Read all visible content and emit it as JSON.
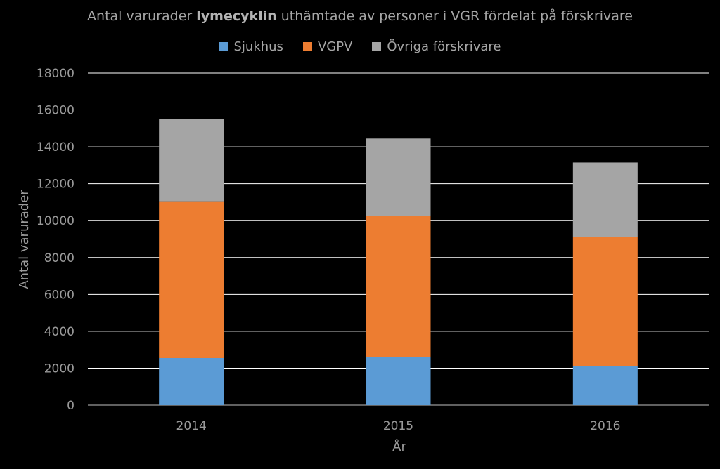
{
  "title": {
    "before": "Antal varurader ",
    "bold": "lymecyklin",
    "after": " uthämtade av personer i VGR fördelat på förskrivare"
  },
  "chart_data": {
    "type": "bar",
    "stacked": true,
    "categories": [
      "2014",
      "2015",
      "2016"
    ],
    "series": [
      {
        "name": "Sjukhus",
        "color": "#5b9bd5",
        "values": [
          2550,
          2600,
          2100
        ]
      },
      {
        "name": "VGPV",
        "color": "#ed7d31",
        "values": [
          8500,
          7650,
          7000
        ]
      },
      {
        "name": "Övriga förskrivare",
        "color": "#a5a5a5",
        "values": [
          4450,
          4200,
          4050
        ]
      }
    ],
    "xlabel": "År",
    "ylabel": "Antal varurader",
    "ylim": [
      0,
      18000
    ],
    "yticks": [
      0,
      2000,
      4000,
      6000,
      8000,
      10000,
      12000,
      14000,
      16000,
      18000
    ],
    "grid": true,
    "legend_position": "top"
  }
}
